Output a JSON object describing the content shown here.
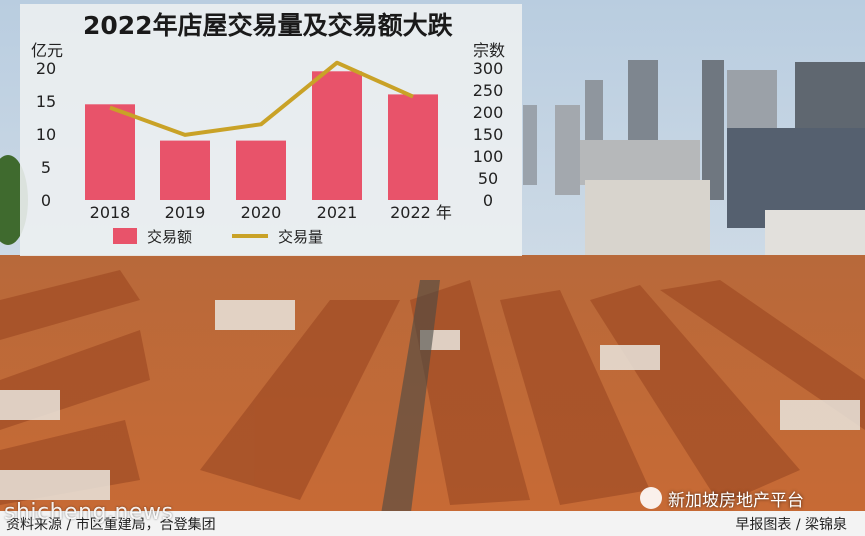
{
  "chart_data": {
    "type": "bar+line",
    "title": "2022年店屋交易量及交易额大跌",
    "categories": [
      "2018",
      "2019",
      "2020",
      "2021",
      "2022 年"
    ],
    "left_axis": {
      "unit": "亿元",
      "ticks": [
        "0",
        "5",
        "10",
        "15",
        "20"
      ],
      "ylim": [
        0,
        20
      ]
    },
    "right_axis": {
      "unit": "宗数",
      "ticks": [
        "0",
        "50",
        "100",
        "150",
        "200",
        "250",
        "300"
      ],
      "ylim": [
        0,
        300
      ]
    },
    "series": [
      {
        "name": "交易额",
        "type": "bar",
        "axis": "left",
        "color": "#e8536a",
        "values": [
          14.5,
          9,
          9,
          19.5,
          16
        ]
      },
      {
        "name": "交易量",
        "type": "line",
        "axis": "right",
        "color": "#c9a227",
        "values": [
          210,
          148,
          172,
          312,
          235
        ]
      }
    ],
    "legend": "bottom"
  },
  "footer": {
    "source": "资料来源 / 市区重建局，合登集团",
    "credit": "早报图表 / 梁锦泉"
  },
  "watermarks": {
    "site": "shicheng.news",
    "brand": "新加坡房地产平台"
  },
  "colors": {
    "bar": "#e8536a",
    "line": "#c9a227",
    "sky": "#c8d6e3",
    "roof": "#c8662e"
  }
}
